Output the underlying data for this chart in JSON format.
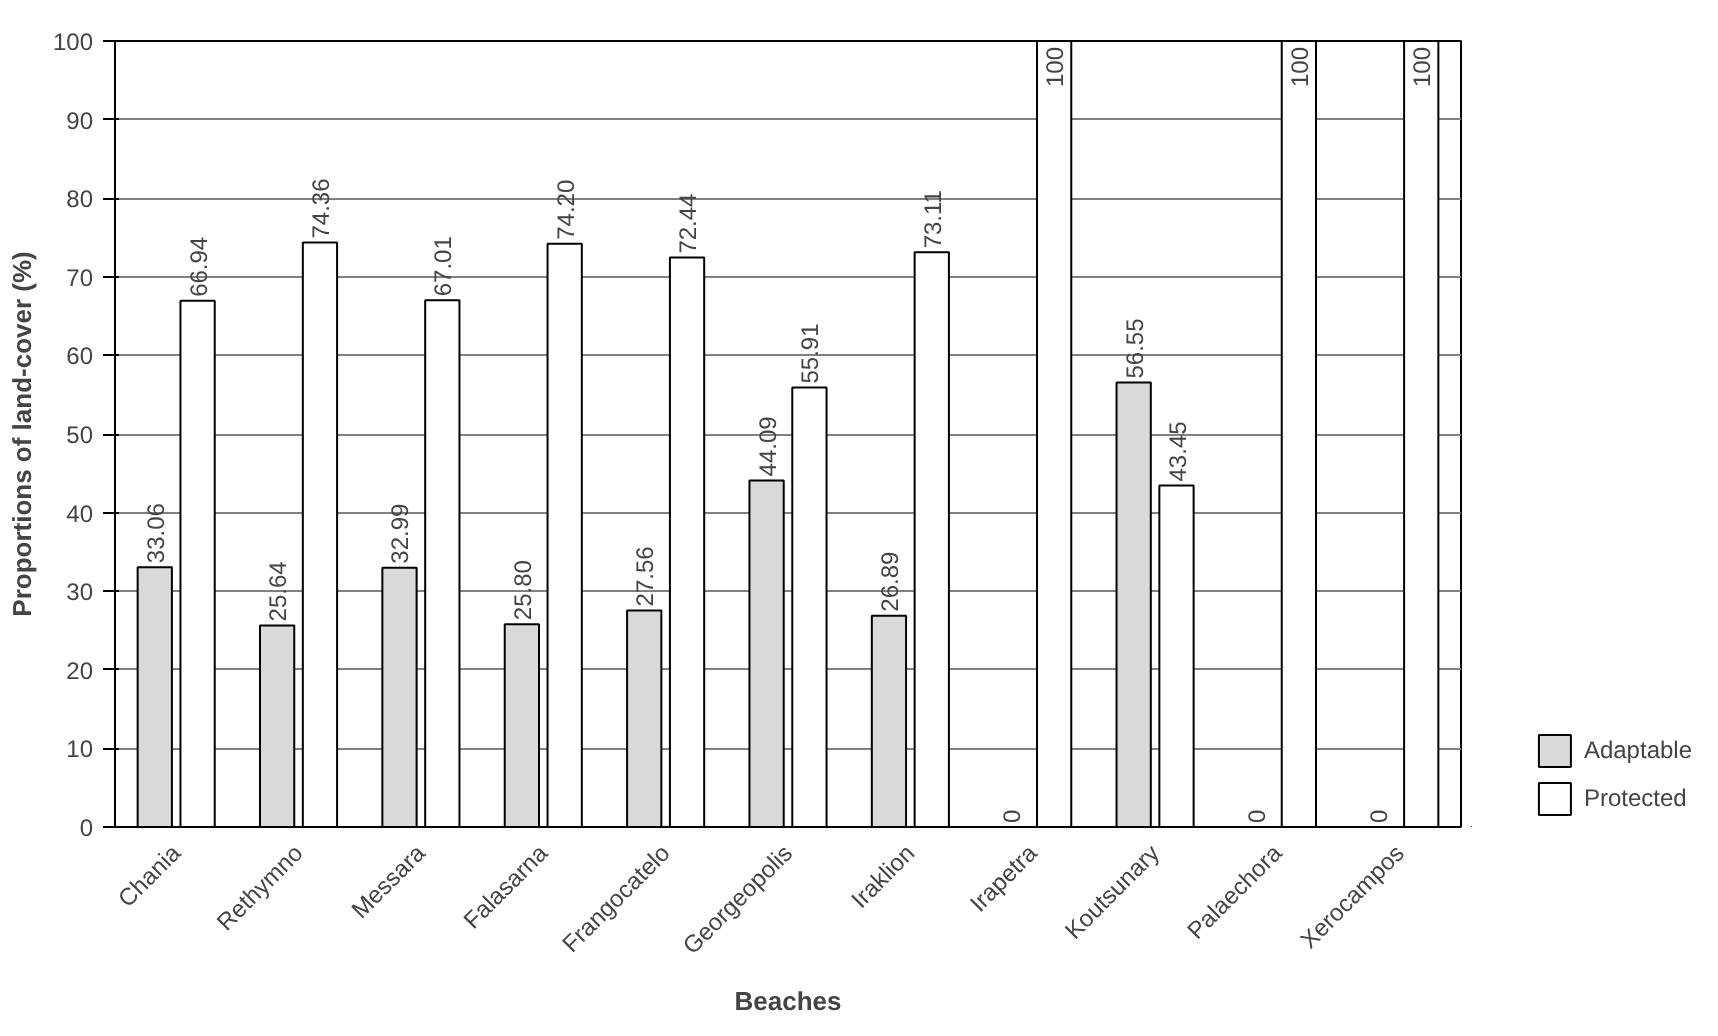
{
  "chart_data": {
    "type": "bar",
    "xlabel": "Beaches",
    "ylabel": "Proportions of land-cover (%)",
    "categories": [
      "Chania",
      "Rethymno",
      "Messara",
      "Falasarna",
      "Frangocatelo",
      "Georgeopolis",
      "Iraklion",
      "Irapetra",
      "Koutsunary",
      "Palaechora",
      "Xerocampos"
    ],
    "series": [
      {
        "name": "Adaptable",
        "color": "#d9d9d9",
        "values": [
          33.06,
          25.64,
          32.99,
          25.8,
          27.56,
          44.09,
          26.89,
          0,
          56.55,
          0,
          0
        ],
        "value_labels": [
          "33.06",
          "25.64",
          "32.99",
          "25.80",
          "27.56",
          "44.09",
          "26.89",
          "0",
          "56.55",
          "0",
          "0"
        ]
      },
      {
        "name": "Protected",
        "color": "#ffffff",
        "values": [
          66.94,
          74.36,
          67.01,
          74.2,
          72.44,
          55.91,
          73.11,
          100,
          43.45,
          100,
          100
        ],
        "value_labels": [
          "66.94",
          "74.36",
          "67.01",
          "74.20",
          "72.44",
          "55.91",
          "73.11",
          "100",
          "43.45",
          "100",
          "100"
        ]
      }
    ],
    "ylim": [
      0,
      100
    ],
    "yticks": [
      0,
      10,
      20,
      30,
      40,
      50,
      60,
      70,
      80,
      90,
      100
    ],
    "grid": "y",
    "legend": "bottom right"
  }
}
